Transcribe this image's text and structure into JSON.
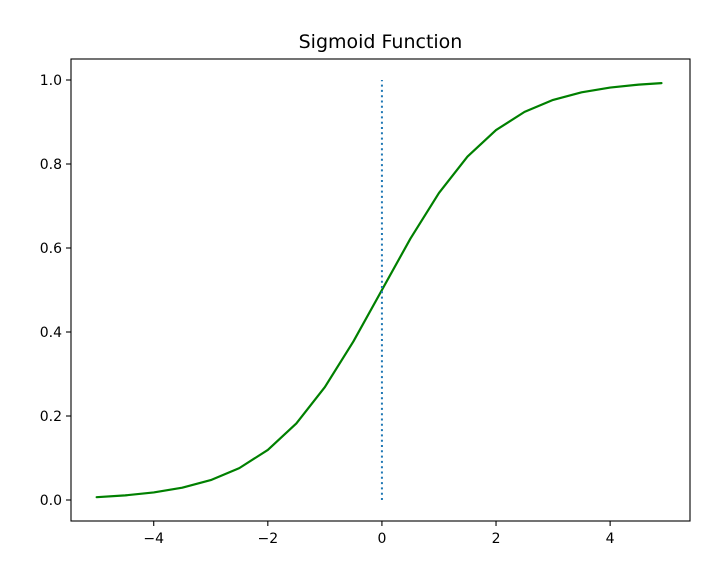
{
  "chart_data": {
    "type": "line",
    "title": "Sigmoid Function",
    "xlabel": "",
    "ylabel": "",
    "xlim": [
      -5.45,
      5.4
    ],
    "ylim": [
      -0.05,
      1.05
    ],
    "x_ticks": [
      -4,
      -2,
      0,
      2,
      4
    ],
    "y_ticks": [
      0.0,
      0.2,
      0.4,
      0.6,
      0.8,
      1.0
    ],
    "x_tick_labels": [
      "−4",
      "−2",
      "0",
      "2",
      "4"
    ],
    "y_tick_labels": [
      "0.0",
      "0.2",
      "0.4",
      "0.6",
      "0.8",
      "1.0"
    ],
    "grid": false,
    "series": [
      {
        "style": "solid",
        "color": "#008000",
        "x": [
          -5.0,
          -4.5,
          -4.0,
          -3.5,
          -3.0,
          -2.5,
          -2.0,
          -1.5,
          -1.0,
          -0.5,
          0.0,
          0.5,
          1.0,
          1.5,
          2.0,
          2.5,
          3.0,
          3.5,
          4.0,
          4.5,
          4.9
        ],
        "y": [
          0.0067,
          0.011,
          0.018,
          0.0293,
          0.0474,
          0.0759,
          0.1192,
          0.1824,
          0.2689,
          0.3775,
          0.5,
          0.6225,
          0.7311,
          0.8176,
          0.8808,
          0.9241,
          0.9526,
          0.9707,
          0.982,
          0.989,
          0.9926
        ]
      },
      {
        "style": "dotted",
        "color": "#1f77b4",
        "x": [
          0.0,
          0.0
        ],
        "y": [
          0.0,
          1.0
        ]
      }
    ]
  }
}
